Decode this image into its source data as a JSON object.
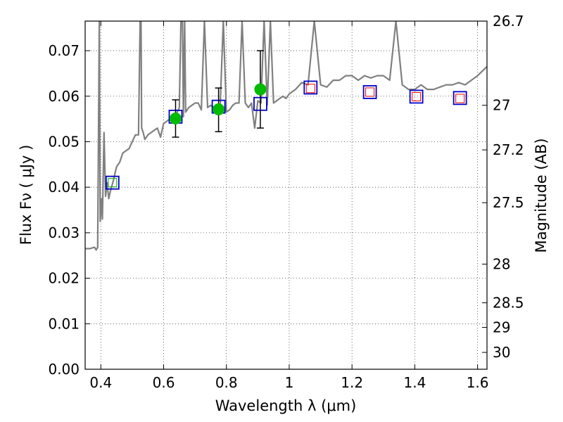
{
  "chart_data": {
    "type": "scatter",
    "xlabel": "Wavelength  λ (μm)",
    "ylabel": "Flux  Fν  ( μJy )",
    "y2label": "Magnitude (AB)",
    "xlim": [
      0.35,
      1.63
    ],
    "ylim": [
      0.0,
      0.0765
    ],
    "grid": true,
    "x_ticks": [
      0.4,
      0.6,
      0.8,
      1.0,
      1.2,
      1.4,
      1.6
    ],
    "x_tick_labels": [
      "0.4",
      "0.6",
      "0.8",
      "1",
      "1.2",
      "1.4",
      "1.6"
    ],
    "y_ticks": [
      0.0,
      0.01,
      0.02,
      0.03,
      0.04,
      0.05,
      0.06,
      0.07
    ],
    "y_tick_labels": [
      "0.00",
      "0.01",
      "0.02",
      "0.03",
      "0.04",
      "0.05",
      "0.06",
      "0.07"
    ],
    "y2_ticks": [
      {
        "label": "26.7",
        "flux": 0.0765
      },
      {
        "label": "27",
        "flux": 0.058
      },
      {
        "label": "27.2",
        "flux": 0.0482
      },
      {
        "label": "27.5",
        "flux": 0.0366
      },
      {
        "label": "28",
        "flux": 0.0231
      },
      {
        "label": "28.5",
        "flux": 0.0146
      },
      {
        "label": "29",
        "flux": 0.0092
      },
      {
        "label": "30",
        "flux": 0.0037
      }
    ],
    "series": [
      {
        "style": "line",
        "color": "#808080",
        "x": [
          0.35,
          0.365,
          0.38,
          0.385,
          0.39,
          0.395,
          0.398,
          0.403,
          0.405,
          0.41,
          0.415,
          0.42,
          0.425,
          0.43,
          0.44,
          0.45,
          0.46,
          0.47,
          0.48,
          0.49,
          0.5,
          0.51,
          0.52,
          0.525,
          0.528,
          0.53,
          0.535,
          0.54,
          0.55,
          0.56,
          0.57,
          0.58,
          0.59,
          0.6,
          0.61,
          0.62,
          0.63,
          0.64,
          0.65,
          0.655,
          0.66,
          0.663,
          0.667,
          0.67,
          0.68,
          0.69,
          0.7,
          0.71,
          0.72,
          0.73,
          0.74,
          0.75,
          0.76,
          0.77,
          0.78,
          0.79,
          0.8,
          0.81,
          0.82,
          0.83,
          0.84,
          0.85,
          0.86,
          0.87,
          0.88,
          0.89,
          0.9,
          0.91,
          0.92,
          0.93,
          0.94,
          0.95,
          0.96,
          0.97,
          0.98,
          0.99,
          1.0,
          1.02,
          1.04,
          1.06,
          1.08,
          1.1,
          1.12,
          1.14,
          1.16,
          1.18,
          1.2,
          1.22,
          1.24,
          1.26,
          1.28,
          1.3,
          1.32,
          1.34,
          1.36,
          1.38,
          1.4,
          1.42,
          1.44,
          1.46,
          1.48,
          1.5,
          1.52,
          1.54,
          1.56,
          1.58,
          1.6,
          1.63
        ],
        "y": [
          0.0265,
          0.0265,
          0.0268,
          0.0262,
          0.0268,
          0.0765,
          0.0325,
          0.0375,
          0.033,
          0.052,
          0.038,
          0.041,
          0.0375,
          0.039,
          0.0415,
          0.0445,
          0.0455,
          0.0475,
          0.048,
          0.0485,
          0.05,
          0.0515,
          0.0515,
          0.0765,
          0.0765,
          0.053,
          0.052,
          0.0505,
          0.0515,
          0.052,
          0.0525,
          0.053,
          0.051,
          0.054,
          0.0545,
          0.055,
          0.0555,
          0.056,
          0.0575,
          0.0765,
          0.0765,
          0.0555,
          0.0765,
          0.0565,
          0.0575,
          0.058,
          0.0585,
          0.0585,
          0.057,
          0.0765,
          0.0575,
          0.058,
          0.0575,
          0.0575,
          0.0575,
          0.0765,
          0.0565,
          0.057,
          0.058,
          0.0585,
          0.0585,
          0.0765,
          0.0585,
          0.0575,
          0.0585,
          0.053,
          0.059,
          0.0585,
          0.0765,
          0.058,
          0.0765,
          0.0585,
          0.059,
          0.0595,
          0.06,
          0.0595,
          0.0605,
          0.0615,
          0.063,
          0.0625,
          0.0765,
          0.0625,
          0.062,
          0.0635,
          0.0635,
          0.0645,
          0.0645,
          0.0635,
          0.0645,
          0.064,
          0.0645,
          0.0645,
          0.0635,
          0.0765,
          0.0625,
          0.0615,
          0.0615,
          0.0625,
          0.0615,
          0.0615,
          0.062,
          0.0625,
          0.0625,
          0.063,
          0.0625,
          0.0635,
          0.0645,
          0.0665
        ]
      },
      {
        "style": "open-square",
        "color": "#0000cc",
        "x": [
          0.437,
          0.638,
          0.775,
          0.908,
          1.068,
          1.257,
          1.405,
          1.544
        ],
        "y": [
          0.041,
          0.0555,
          0.0577,
          0.0583,
          0.0619,
          0.0609,
          0.0599,
          0.0596
        ]
      },
      {
        "style": "open-square-small",
        "color": "#ff0000",
        "x": [
          1.068,
          1.257,
          1.405,
          1.544
        ],
        "y": [
          0.0617,
          0.0609,
          0.0599,
          0.0595
        ]
      },
      {
        "style": "open-square-small",
        "color": "#00aa00",
        "x": [
          0.437
        ],
        "y": [
          0.041
        ]
      },
      {
        "style": "filled-circle-errorbar",
        "color": "#00bb00",
        "x": [
          0.638,
          0.775,
          0.908
        ],
        "y": [
          0.0551,
          0.0571,
          0.0615
        ],
        "yerr_low": [
          0.051,
          0.0522,
          0.053
        ],
        "yerr_high": [
          0.0592,
          0.0618,
          0.07
        ]
      }
    ]
  }
}
